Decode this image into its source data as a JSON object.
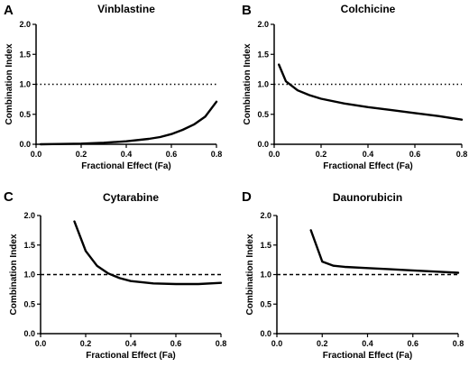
{
  "chart_data": [
    {
      "type": "line",
      "panel": "A",
      "title": "Vinblastine",
      "xlabel": "Fractional Effect (Fa)",
      "ylabel": "Combination Index",
      "xlim": [
        0,
        0.8
      ],
      "ylim": [
        0,
        2.0
      ],
      "xticks": [
        "0.0",
        "0.2",
        "0.4",
        "0.6",
        "0.8"
      ],
      "yticks": [
        "0.0",
        "0.5",
        "1.0",
        "1.5",
        "2.0"
      ],
      "reference_line": {
        "y": 1.0,
        "style": "dotted"
      },
      "series": [
        {
          "x": [
            0.02,
            0.1,
            0.2,
            0.3,
            0.4,
            0.5,
            0.55,
            0.6,
            0.65,
            0.7,
            0.75,
            0.8
          ],
          "y": [
            0.0,
            0.005,
            0.01,
            0.025,
            0.05,
            0.09,
            0.12,
            0.17,
            0.24,
            0.33,
            0.46,
            0.71
          ]
        }
      ]
    },
    {
      "type": "line",
      "panel": "B",
      "title": "Colchicine",
      "xlabel": "Fractional Effect (Fa)",
      "ylabel": "Combination Index",
      "xlim": [
        0,
        0.8
      ],
      "ylim": [
        0,
        2.0
      ],
      "xticks": [
        "0.0",
        "0.2",
        "0.4",
        "0.6",
        "0.8"
      ],
      "yticks": [
        "0.0",
        "0.5",
        "1.0",
        "1.5",
        "2.0"
      ],
      "reference_line": {
        "y": 1.0,
        "style": "dotted"
      },
      "series": [
        {
          "x": [
            0.02,
            0.05,
            0.1,
            0.15,
            0.2,
            0.3,
            0.4,
            0.5,
            0.6,
            0.7,
            0.8
          ],
          "y": [
            1.33,
            1.05,
            0.9,
            0.82,
            0.76,
            0.68,
            0.62,
            0.57,
            0.52,
            0.47,
            0.41
          ]
        }
      ]
    },
    {
      "type": "line",
      "panel": "C",
      "title": "Cytarabine",
      "xlabel": "Fractional Effect (Fa)",
      "ylabel": "Combination Index",
      "xlim": [
        0,
        0.8
      ],
      "ylim": [
        0,
        2.0
      ],
      "xticks": [
        "0.0",
        "0.2",
        "0.4",
        "0.6",
        "0.8"
      ],
      "yticks": [
        "0.0",
        "0.5",
        "1.0",
        "1.5",
        "2.0"
      ],
      "reference_line": {
        "y": 1.0,
        "style": "dashed"
      },
      "series": [
        {
          "x": [
            0.15,
            0.2,
            0.25,
            0.3,
            0.35,
            0.4,
            0.5,
            0.6,
            0.7,
            0.8
          ],
          "y": [
            1.9,
            1.4,
            1.15,
            1.02,
            0.94,
            0.89,
            0.85,
            0.84,
            0.84,
            0.86
          ]
        }
      ]
    },
    {
      "type": "line",
      "panel": "D",
      "title": "Daunorubicin",
      "xlabel": "Fractional Effect (Fa)",
      "ylabel": "Combination Index",
      "xlim": [
        0,
        0.8
      ],
      "ylim": [
        0,
        2.0
      ],
      "xticks": [
        "0.0",
        "0.2",
        "0.4",
        "0.6",
        "0.8"
      ],
      "yticks": [
        "0.0",
        "0.5",
        "1.0",
        "1.5",
        "2.0"
      ],
      "reference_line": {
        "y": 1.0,
        "style": "dashed"
      },
      "series": [
        {
          "x": [
            0.15,
            0.2,
            0.25,
            0.3,
            0.4,
            0.5,
            0.6,
            0.7,
            0.8
          ],
          "y": [
            1.75,
            1.22,
            1.15,
            1.13,
            1.11,
            1.09,
            1.07,
            1.05,
            1.03
          ]
        }
      ]
    }
  ]
}
